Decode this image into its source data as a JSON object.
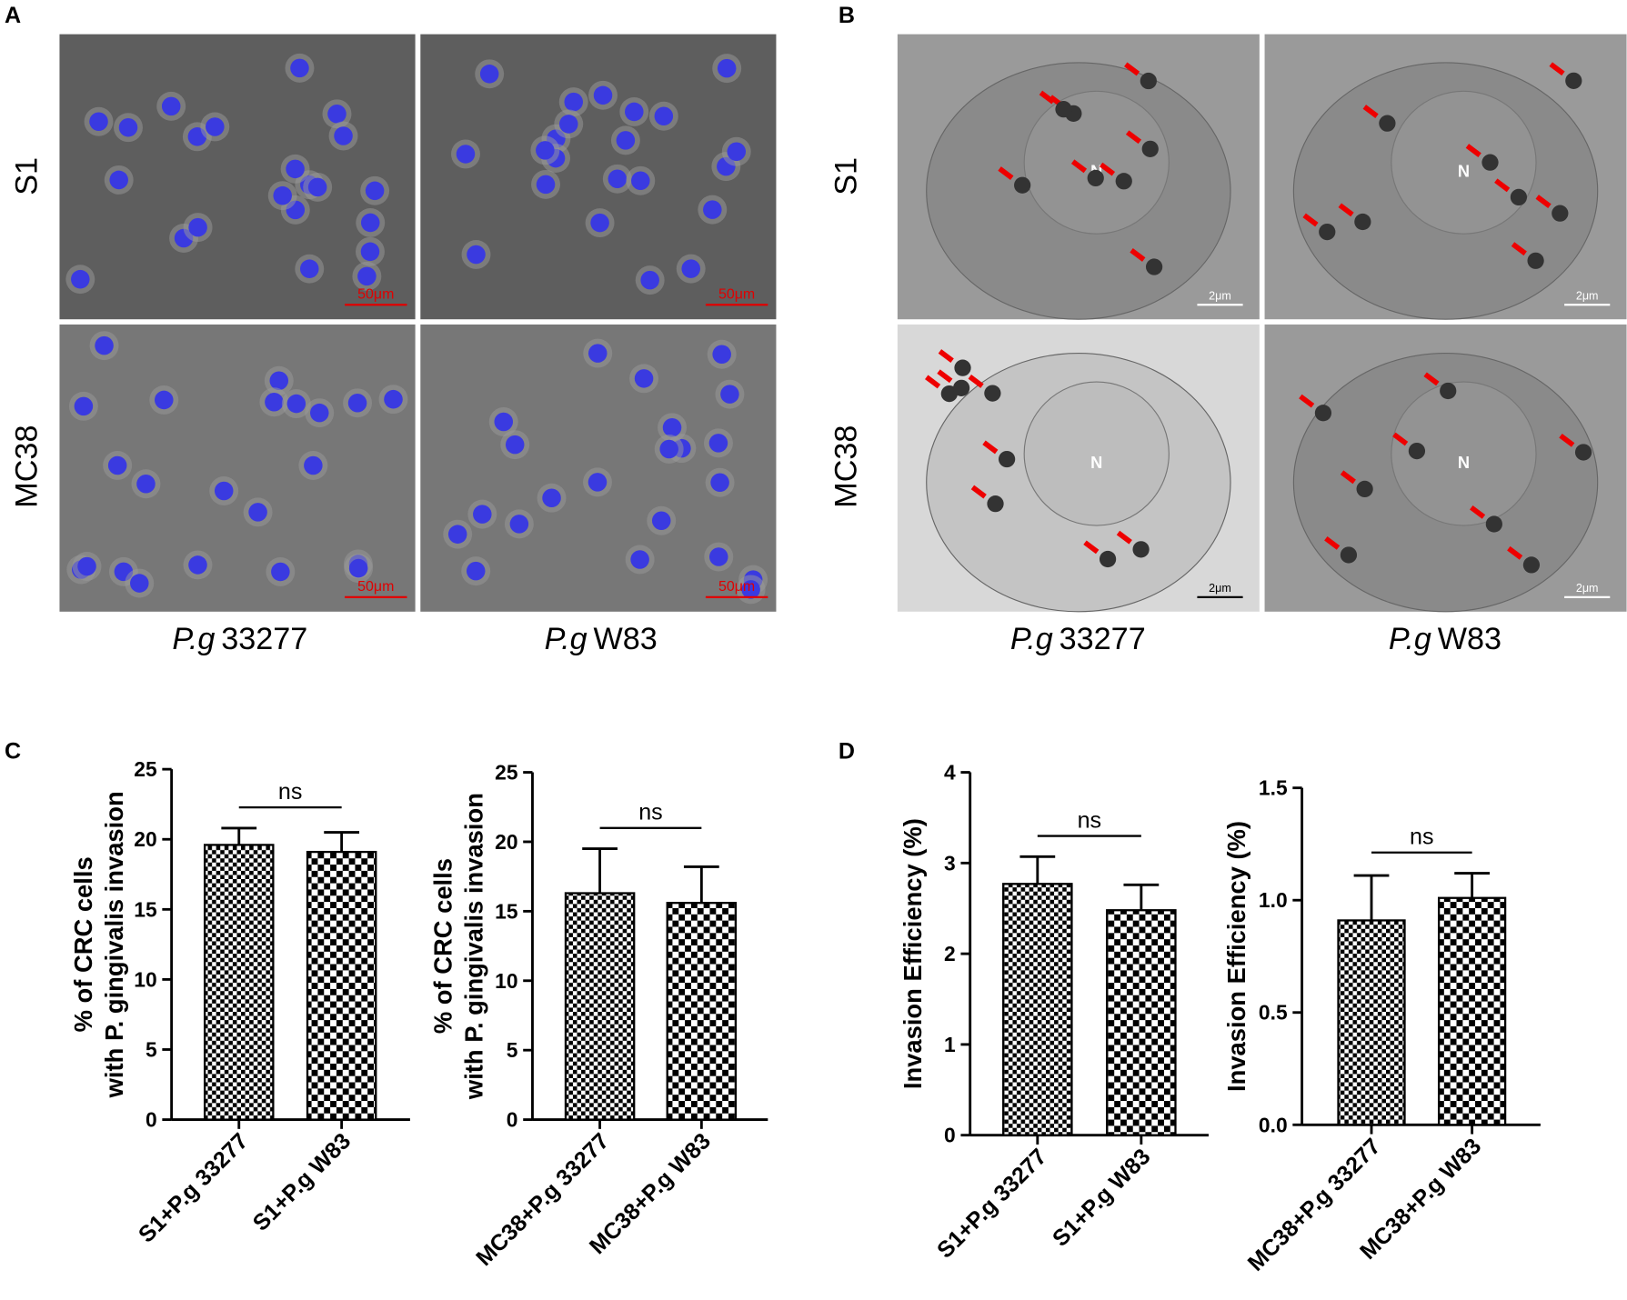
{
  "panel_labels": [
    "A",
    "B",
    "C",
    "D"
  ],
  "panel_a": {
    "rows": [
      "S1",
      "MC38"
    ],
    "columns": [
      {
        "species": "P.g",
        "strain": "33277"
      },
      {
        "species": "P.g",
        "strain": "W83"
      }
    ],
    "scale_bars": [
      "50μm",
      "50μm",
      "50μm",
      "50μm"
    ]
  },
  "panel_b": {
    "rows": [
      "S1",
      "MC38"
    ],
    "columns": [
      {
        "species": "P.g",
        "strain": "33277"
      },
      {
        "species": "P.g",
        "strain": "W83"
      }
    ],
    "scale_bars": [
      "2μm",
      "2μm",
      "2μm",
      "2μm"
    ],
    "nucleus_labels": [
      "N",
      "N",
      "N",
      "N"
    ]
  },
  "chart_data": [
    {
      "type": "bar",
      "ylabel": [
        "% of CRC cells",
        "with P. gingivalis invasion"
      ],
      "categories": [
        "S1+P.g 33277",
        "S1+P.g W83"
      ],
      "values": [
        19.6,
        19.1
      ],
      "errors": [
        1.2,
        1.4
      ],
      "ylim": [
        0,
        25
      ],
      "yticks": [
        0,
        5,
        10,
        15,
        20,
        25
      ],
      "annotation": "ns"
    },
    {
      "type": "bar",
      "ylabel": [
        "% of CRC cells",
        "with P. gingivalis invasion"
      ],
      "categories": [
        "MC38+P.g 33277",
        "MC38+P.g W83"
      ],
      "values": [
        16.3,
        15.6
      ],
      "errors": [
        3.2,
        2.6
      ],
      "ylim": [
        0,
        25
      ],
      "yticks": [
        0,
        5,
        10,
        15,
        20,
        25
      ],
      "annotation": "ns"
    },
    {
      "type": "bar",
      "ylabel": [
        "Invasion Efficiency (%)"
      ],
      "categories": [
        "S1+P.g 33277",
        "S1+P.g W83"
      ],
      "values": [
        2.77,
        2.48
      ],
      "errors": [
        0.3,
        0.28
      ],
      "ylim": [
        0,
        4
      ],
      "yticks": [
        0,
        1,
        2,
        3,
        4
      ],
      "annotation": "ns"
    },
    {
      "type": "bar",
      "ylabel": [
        "Invasion Efficiency (%)"
      ],
      "categories": [
        "MC38+P.g 33277",
        "MC38+P.g W83"
      ],
      "values": [
        0.91,
        1.01
      ],
      "errors": [
        0.2,
        0.11
      ],
      "ylim": [
        0,
        1.5
      ],
      "yticks": [
        {
          "value": 0,
          "label": "0.0"
        },
        {
          "value": 0.5,
          "label": "0.5"
        },
        {
          "value": 1,
          "label": "1.0"
        },
        {
          "value": 1.5,
          "label": "1.5"
        }
      ],
      "annotation": "ns"
    }
  ]
}
